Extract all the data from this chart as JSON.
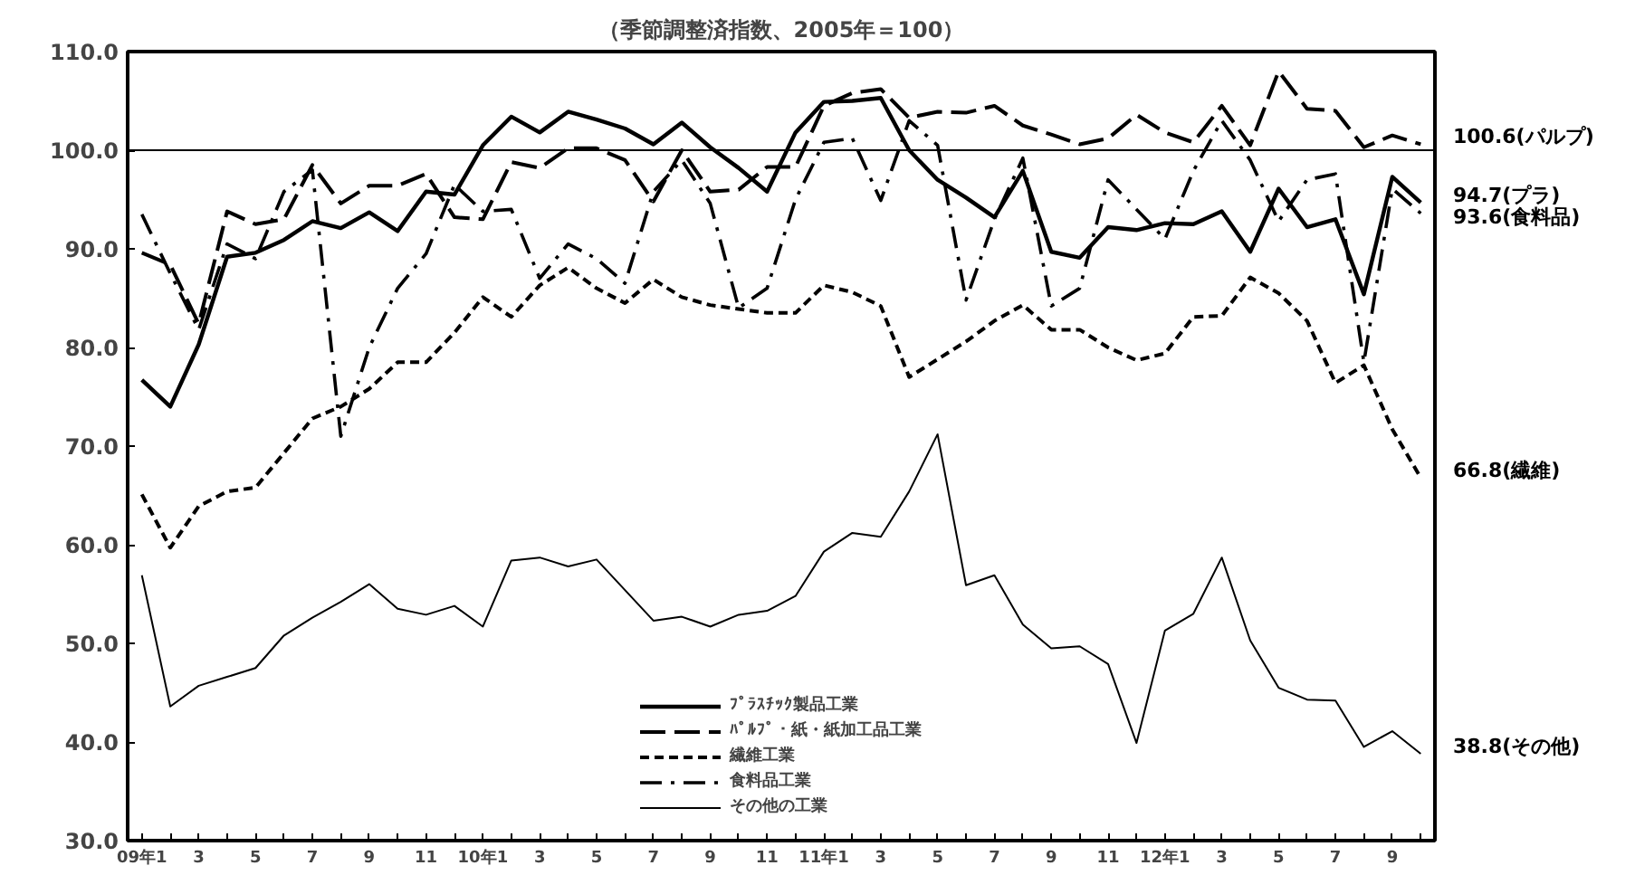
{
  "chart_data": {
    "type": "line",
    "title": "（季節調整済指数、2005年＝100）",
    "categories": [
      "09年1",
      null,
      "3",
      null,
      "5",
      null,
      "7",
      null,
      "9",
      null,
      "11",
      null,
      "10年1",
      null,
      "3",
      null,
      "5",
      null,
      "7",
      null,
      "9",
      null,
      "11",
      null,
      "11年1",
      null,
      "3",
      null,
      "5",
      null,
      "7",
      null,
      "9",
      null,
      "11",
      null,
      "12年1",
      null,
      "3",
      null,
      "5",
      null,
      "7",
      null,
      "9",
      null
    ],
    "series": [
      {
        "name": "ﾌﾟﾗｽﾁｯｸ製品工業",
        "color": "#000000",
        "line_style": "solid",
        "values": [
          76.7,
          74.0,
          80.3,
          89.2,
          89.6,
          90.9,
          92.8,
          92.1,
          93.7,
          91.8,
          95.8,
          95.5,
          100.5,
          103.4,
          101.8,
          103.9,
          103.1,
          102.2,
          100.6,
          102.8,
          100.3,
          98.2,
          95.8,
          101.8,
          104.9,
          105.0,
          105.3,
          100.0,
          97.0,
          95.2,
          93.2,
          97.9,
          89.7,
          89.1,
          92.2,
          91.9,
          92.6,
          92.5,
          93.8,
          89.7,
          96.1,
          92.2,
          93.0,
          85.4,
          97.3,
          94.7
        ]
      },
      {
        "name": "ﾊﾟﾙﾌﾟ・紙・紙加工品工業",
        "color": "#000000",
        "line_style": "dashed",
        "values": [
          89.6,
          88.4,
          82.4,
          93.8,
          92.5,
          93.0,
          98.5,
          94.6,
          96.4,
          96.4,
          97.6,
          93.2,
          93.0,
          98.8,
          98.2,
          100.2,
          100.2,
          99.0,
          94.8,
          100.0,
          95.8,
          96.0,
          98.3,
          98.3,
          104.5,
          105.8,
          106.2,
          103.3,
          103.9,
          103.8,
          104.5,
          102.5,
          101.6,
          100.6,
          101.2,
          103.6,
          101.8,
          100.8,
          104.5,
          100.5,
          108.0,
          104.2,
          104.0,
          100.3,
          101.5,
          100.6
        ]
      },
      {
        "name": "繊維工業",
        "color": "#000000",
        "line_style": "dotted",
        "values": [
          65.1,
          59.7,
          63.9,
          65.4,
          65.8,
          69.3,
          72.8,
          74.0,
          75.8,
          78.5,
          78.5,
          81.5,
          85.1,
          83.1,
          86.3,
          88.1,
          86.0,
          84.5,
          86.9,
          85.1,
          84.3,
          83.9,
          83.5,
          83.5,
          86.3,
          85.6,
          84.2,
          77.0,
          78.8,
          80.6,
          82.7,
          84.3,
          81.8,
          81.8,
          80.0,
          78.7,
          79.4,
          83.1,
          83.2,
          87.1,
          85.5,
          82.7,
          76.4,
          78.2,
          71.7,
          66.8
        ]
      },
      {
        "name": "食料品工業",
        "color": "#000000",
        "line_style": "dashdot",
        "values": [
          93.5,
          87.5,
          81.8,
          90.5,
          89.0,
          95.8,
          98.0,
          71.0,
          80.0,
          86.0,
          89.5,
          96.5,
          93.8,
          94.0,
          87.0,
          90.5,
          89.0,
          86.5,
          95.8,
          99.0,
          94.6,
          84.0,
          86.0,
          95.0,
          100.8,
          101.2,
          94.9,
          103.0,
          100.5,
          84.8,
          93.0,
          99.2,
          84.2,
          86.0,
          97.0,
          94.0,
          91.0,
          97.9,
          103.0,
          99.0,
          92.8,
          97.0,
          97.6,
          78.5,
          96.1,
          93.6
        ]
      },
      {
        "name": "その他の工業",
        "color": "#000000",
        "line_style": "solid",
        "values": [
          56.9,
          43.6,
          45.7,
          46.6,
          47.5,
          50.8,
          52.6,
          54.2,
          56.0,
          53.5,
          52.9,
          53.8,
          51.7,
          58.4,
          58.7,
          57.8,
          58.5,
          55.4,
          52.3,
          52.7,
          51.7,
          52.9,
          53.3,
          54.8,
          59.3,
          61.2,
          60.8,
          65.4,
          71.2,
          55.9,
          56.9,
          51.9,
          49.5,
          49.7,
          47.9,
          39.9,
          51.3,
          53.0,
          58.7,
          50.3,
          45.5,
          44.3,
          44.2,
          39.5,
          41.1,
          38.8
        ]
      }
    ],
    "ylim": [
      30,
      110
    ],
    "yticks": [
      {
        "value": 30,
        "label": "30.0"
      },
      {
        "value": 40,
        "label": "40.0"
      },
      {
        "value": 50,
        "label": "50.0"
      },
      {
        "value": 60,
        "label": "60.0"
      },
      {
        "value": 70,
        "label": "70.0"
      },
      {
        "value": 80,
        "label": "80.0"
      },
      {
        "value": 90,
        "label": "90.0"
      },
      {
        "value": 100,
        "label": "100.0"
      },
      {
        "value": 110,
        "label": "110.0"
      }
    ],
    "ref_lines": [
      {
        "axis": "y",
        "value": 100,
        "color": "#000000"
      }
    ],
    "annotations": [
      "100.6(パルプ)",
      "94.7(プラ)",
      "93.6(食料品)",
      "66.8(繊維)",
      "38.8(その他)"
    ],
    "legend": "bottom",
    "grid": false
  }
}
